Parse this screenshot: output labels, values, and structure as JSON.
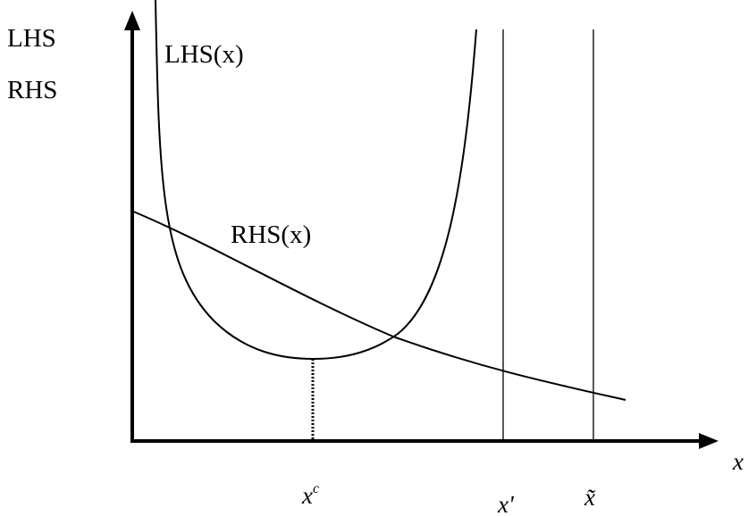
{
  "axes": {
    "y_label_line1": "LHS",
    "y_label_line2": "RHS",
    "x_label": "x"
  },
  "curves": {
    "lhs_label": "LHS(x)",
    "rhs_label": "RHS(x)"
  },
  "markers": {
    "xc_base": "x",
    "xc_sup": "c",
    "xprime": "x'",
    "xtilde": "x̃"
  }
}
